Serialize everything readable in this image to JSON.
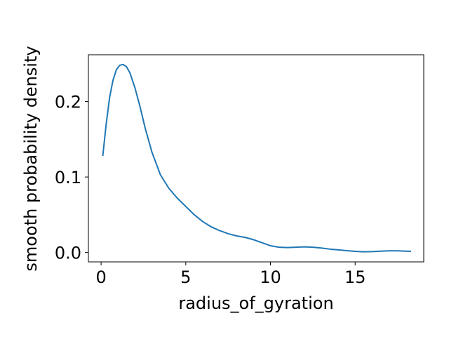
{
  "chart_data": {
    "type": "line",
    "title": "",
    "xlabel": "radius_of_gyration",
    "ylabel": "smooth probability density",
    "xlim": [
      -0.75,
      19.05
    ],
    "ylim": [
      -0.0124,
      0.2619
    ],
    "xticks": [
      0,
      5,
      10,
      15
    ],
    "xtick_labels": [
      "0",
      "5",
      "10",
      "15"
    ],
    "yticks": [
      0.0,
      0.1,
      0.2
    ],
    "ytick_labels": [
      "0.0",
      "0.1",
      "0.2"
    ],
    "grid": false,
    "legend": "none",
    "series": [
      {
        "color": "#1f77b4",
        "x": [
          0.1,
          0.3,
          0.5,
          0.7,
          0.9,
          1.1,
          1.3,
          1.5,
          1.7,
          2.0,
          2.3,
          2.6,
          3.0,
          3.5,
          4.0,
          4.5,
          5.0,
          5.5,
          6.0,
          6.5,
          7.0,
          7.5,
          8.0,
          8.5,
          9.0,
          9.5,
          10.0,
          10.5,
          11.0,
          11.5,
          12.0,
          12.5,
          13.0,
          13.5,
          14.0,
          14.5,
          15.0,
          15.5,
          16.0,
          16.5,
          17.0,
          17.5,
          18.0,
          18.3
        ],
        "y": [
          0.128,
          0.17,
          0.205,
          0.228,
          0.242,
          0.248,
          0.249,
          0.246,
          0.238,
          0.218,
          0.193,
          0.165,
          0.133,
          0.103,
          0.085,
          0.072,
          0.061,
          0.05,
          0.041,
          0.034,
          0.029,
          0.025,
          0.022,
          0.02,
          0.017,
          0.013,
          0.009,
          0.007,
          0.0065,
          0.007,
          0.0075,
          0.007,
          0.006,
          0.0045,
          0.0035,
          0.0025,
          0.0015,
          0.001,
          0.0012,
          0.0018,
          0.0022,
          0.0022,
          0.0018,
          0.0015
        ]
      }
    ]
  }
}
